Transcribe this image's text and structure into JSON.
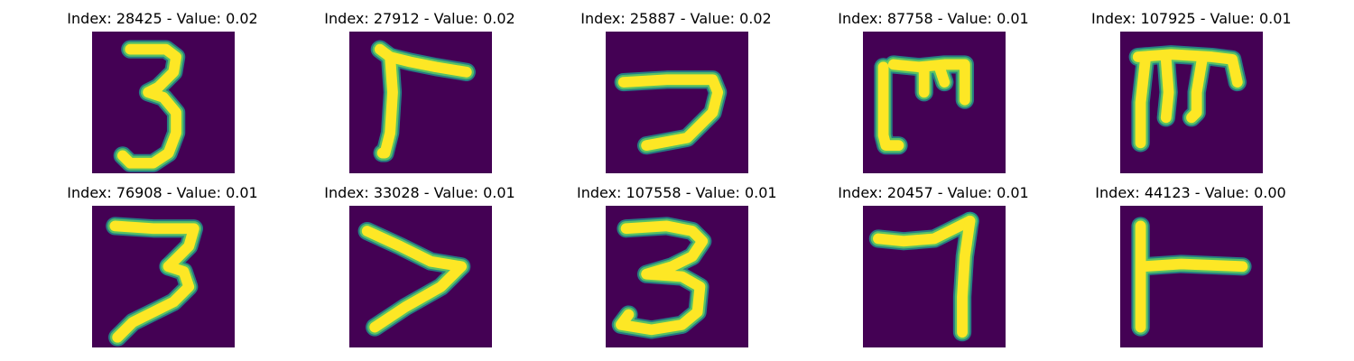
{
  "figure": {
    "colors": {
      "background": "#440154",
      "edge": "#21918c",
      "mid": "#5ec962",
      "stroke": "#fde725"
    },
    "panels": [
      {
        "title": "Index: 28425 - Value: 0.02",
        "index": 28425,
        "value": 0.02
      },
      {
        "title": "Index: 27912 - Value: 0.02",
        "index": 27912,
        "value": 0.02
      },
      {
        "title": "Index: 25887 - Value: 0.02",
        "index": 25887,
        "value": 0.02
      },
      {
        "title": "Index: 87758 - Value: 0.01",
        "index": 87758,
        "value": 0.01
      },
      {
        "title": "Index: 107925 - Value: 0.01",
        "index": 107925,
        "value": 0.01
      },
      {
        "title": "Index: 76908 - Value: 0.01",
        "index": 76908,
        "value": 0.01
      },
      {
        "title": "Index: 33028 - Value: 0.01",
        "index": 33028,
        "value": 0.01
      },
      {
        "title": "Index: 107558 - Value: 0.01",
        "index": 107558,
        "value": 0.01
      },
      {
        "title": "Index: 20457 - Value: 0.01",
        "index": 20457,
        "value": 0.01
      },
      {
        "title": "Index: 44123 - Value: 0.00",
        "index": 44123,
        "value": 0.0
      }
    ]
  }
}
